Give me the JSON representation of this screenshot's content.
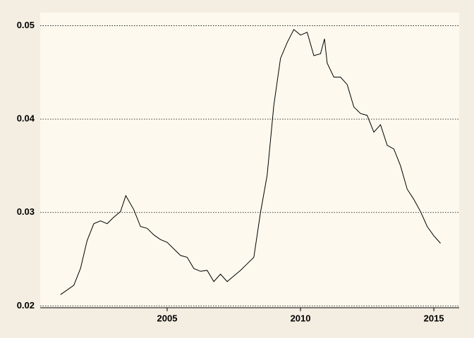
{
  "chart_data": {
    "type": "line",
    "x": [
      2001.0,
      2001.25,
      2001.5,
      2001.75,
      2002.0,
      2002.25,
      2002.5,
      2002.75,
      2003.0,
      2003.25,
      2003.45,
      2003.75,
      2004.0,
      2004.25,
      2004.5,
      2004.75,
      2005.0,
      2005.25,
      2005.5,
      2005.75,
      2006.0,
      2006.25,
      2006.5,
      2006.75,
      2007.0,
      2007.25,
      2007.5,
      2007.75,
      2008.0,
      2008.25,
      2008.5,
      2008.75,
      2009.0,
      2009.25,
      2009.5,
      2009.75,
      2010.0,
      2010.25,
      2010.5,
      2010.75,
      2010.9,
      2011.0,
      2011.25,
      2011.5,
      2011.75,
      2012.0,
      2012.25,
      2012.5,
      2012.75,
      2013.0,
      2013.25,
      2013.5,
      2013.75,
      2014.0,
      2014.25,
      2014.5,
      2014.75,
      2015.0,
      2015.25
    ],
    "series": [
      {
        "color": "#000000",
        "values": [
          0.0212,
          0.0217,
          0.0222,
          0.024,
          0.027,
          0.0288,
          0.0291,
          0.0288,
          0.0295,
          0.0301,
          0.0318,
          0.0303,
          0.0285,
          0.0283,
          0.0276,
          0.0271,
          0.0268,
          0.0261,
          0.0254,
          0.0252,
          0.024,
          0.0237,
          0.0238,
          0.0226,
          0.0234,
          0.0226,
          0.0232,
          0.0238,
          0.0245,
          0.0252,
          0.03,
          0.034,
          0.0415,
          0.0465,
          0.0482,
          0.0496,
          0.049,
          0.0493,
          0.0468,
          0.047,
          0.0486,
          0.046,
          0.0445,
          0.0445,
          0.0437,
          0.0413,
          0.0406,
          0.0404,
          0.0386,
          0.0394,
          0.0372,
          0.0368,
          0.035,
          0.0325,
          0.0314,
          0.0301,
          0.0285,
          0.0275,
          0.0267
        ]
      }
    ],
    "xlim": [
      2000.24,
      2015.95
    ],
    "xticks": [
      2005,
      2010,
      2015
    ],
    "ylim": [
      0.0198,
      0.0514
    ],
    "yticks": [
      0.02,
      0.03,
      0.04,
      0.05
    ],
    "grid": true
  }
}
